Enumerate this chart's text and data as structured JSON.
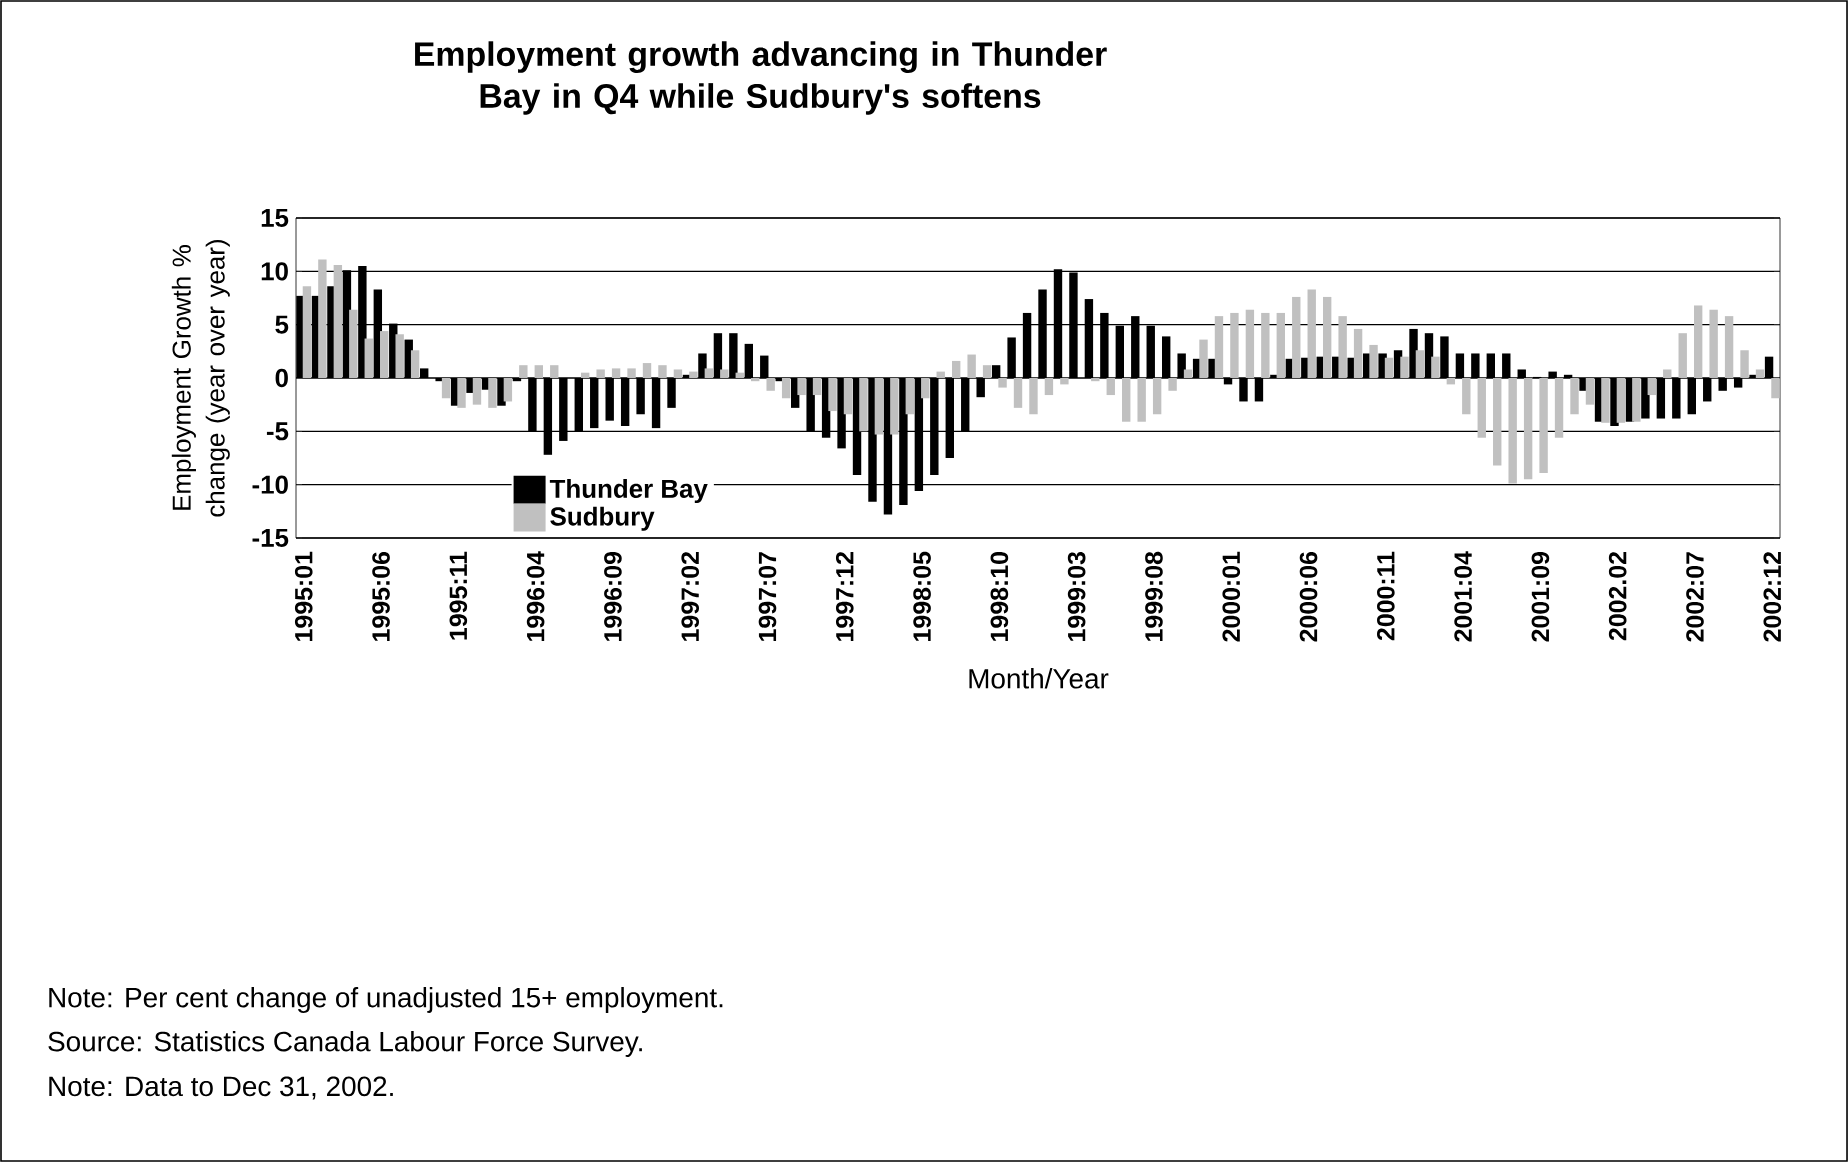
{
  "chart_data": {
    "type": "bar",
    "title": "Employment growth advancing in Thunder Bay in Q4 while Sudbury's softens",
    "xlabel": "Month/Year",
    "ylabel": "Employment Growth % change (year over year)",
    "categories": [
      "1995:01",
      null,
      null,
      null,
      null,
      "1995:06",
      null,
      null,
      null,
      null,
      "1995:11",
      null,
      null,
      null,
      null,
      "1996:04",
      null,
      null,
      null,
      null,
      "1996:09",
      null,
      null,
      null,
      null,
      "1997:02",
      null,
      null,
      null,
      null,
      "1997:07",
      null,
      null,
      null,
      null,
      "1997:12",
      null,
      null,
      null,
      null,
      "1998:05",
      null,
      null,
      null,
      null,
      "1998:10",
      null,
      null,
      null,
      null,
      "1999:03",
      null,
      null,
      null,
      null,
      "1999:08",
      null,
      null,
      null,
      null,
      "2000:01",
      null,
      null,
      null,
      null,
      "2000:06",
      null,
      null,
      null,
      null,
      "2000:11",
      null,
      null,
      null,
      null,
      "2001:04",
      null,
      null,
      null,
      null,
      "2001:09",
      null,
      null,
      null,
      null,
      "2002.02",
      null,
      null,
      null,
      null,
      "2002:07",
      null,
      null,
      null,
      null,
      "2002:12"
    ],
    "series": [
      {
        "name": "Thunder Bay",
        "color": "#000000",
        "values": [
          7.7,
          7.7,
          8.6,
          10.1,
          10.5,
          8.3,
          5.1,
          3.6,
          0.9,
          -0.3,
          -2.6,
          -1.4,
          -1.1,
          -2.6,
          -0.3,
          -5,
          -7.2,
          -5.9,
          -5,
          -4.7,
          -4,
          -4.5,
          -3.4,
          -4.7,
          -2.8,
          0.3,
          2.3,
          4.2,
          4.2,
          3.2,
          2.1,
          -0.3,
          -2.8,
          -5,
          -5.6,
          -6.6,
          -9.1,
          -11.6,
          -12.8,
          -11.9,
          -10.6,
          -9.1,
          -7.5,
          -5,
          -1.8,
          1.2,
          3.8,
          6.1,
          8.3,
          10.2,
          9.9,
          7.4,
          6.1,
          4.9,
          5.8,
          4.9,
          3.9,
          2.3,
          1.8,
          1.8,
          -0.6,
          -2.2,
          -2.2,
          0.3,
          1.8,
          1.9,
          2,
          2,
          1.9,
          2.3,
          2.3,
          2.6,
          4.6,
          4.2,
          3.9,
          2.3,
          2.3,
          2.3,
          2.3,
          0.8,
          0.1,
          0.6,
          0.3,
          -1.2,
          -4.1,
          -4.5,
          -4.1,
          -3.8,
          -3.8,
          -3.8,
          -3.4,
          -2.2,
          -1.2,
          -0.9,
          0.3,
          2
        ]
      },
      {
        "name": "Sudbury",
        "color": "#c0c0c0",
        "values": [
          8.6,
          11.1,
          10.6,
          6.4,
          3.7,
          4.4,
          4.1,
          2.6,
          null,
          -1.9,
          -2.8,
          -2.5,
          -2.8,
          -2.2,
          1.2,
          1.2,
          1.2,
          null,
          0.5,
          0.8,
          0.9,
          0.9,
          1.4,
          1.2,
          0.8,
          0.6,
          0.9,
          0.8,
          0.5,
          -0.3,
          -1.2,
          -1.9,
          -1.6,
          -1.6,
          -3.1,
          -3.4,
          -5,
          -5.3,
          -5.3,
          -3.4,
          -1.9,
          0.6,
          1.6,
          2.2,
          1.2,
          -0.9,
          -2.8,
          -3.4,
          -1.6,
          -0.6,
          null,
          -0.3,
          -1.6,
          -4.1,
          -4.1,
          -3.4,
          -1.2,
          0.8,
          3.6,
          5.8,
          6.1,
          6.4,
          6.1,
          6.1,
          7.6,
          8.3,
          7.6,
          5.8,
          4.6,
          3.1,
          1.9,
          2,
          2.6,
          2,
          -0.6,
          -3.4,
          -5.6,
          -8.2,
          -9.9,
          -9.5,
          -8.9,
          -5.6,
          -3.4,
          -2.5,
          -4.2,
          -4.2,
          -4.1,
          -1.6,
          0.8,
          4.2,
          6.8,
          6.4,
          5.8,
          2.6,
          0.8,
          -1.9
        ]
      }
    ],
    "ylim": [
      -15,
      15
    ],
    "yticks": [
      -15,
      -10,
      -5,
      0,
      5,
      10,
      15
    ],
    "grid": "y",
    "legend": "bottom left",
    "annotations": [
      "Note: Per cent change of unadjusted 15+ employment.",
      "Source: Statistics Canada Labour Force Survey.",
      "Note: Data to Dec 31, 2002."
    ]
  }
}
